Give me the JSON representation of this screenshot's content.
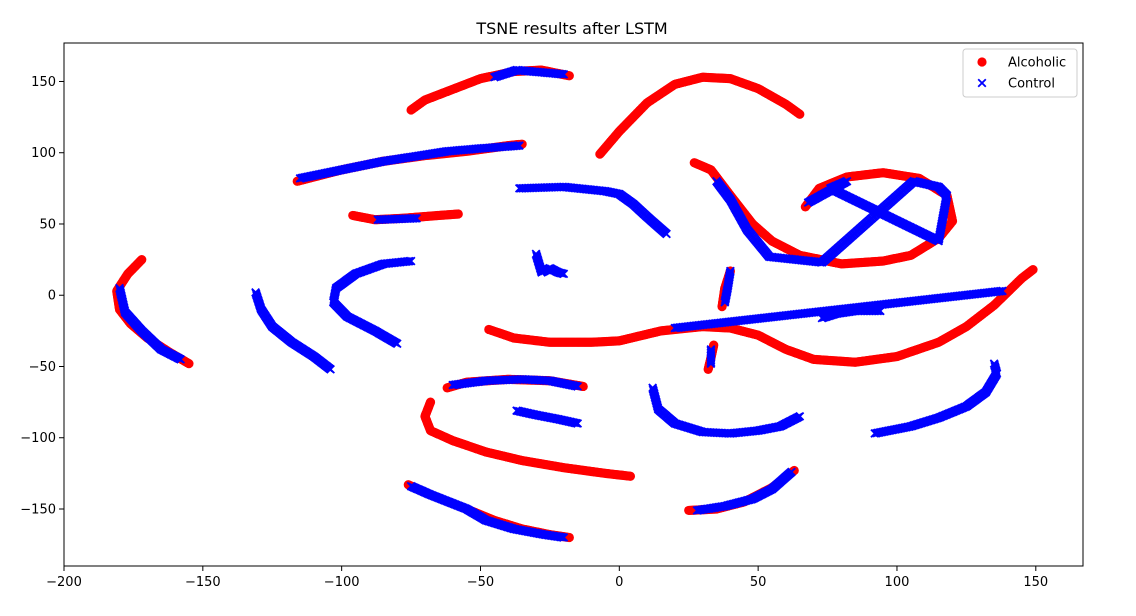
{
  "chart_data": {
    "type": "scatter",
    "title": "TSNE results after LSTM",
    "xlabel": "",
    "ylabel": "",
    "xlim": [
      -200,
      167
    ],
    "ylim": [
      -190,
      177
    ],
    "xticks": [
      -200,
      -150,
      -100,
      -50,
      0,
      50,
      100,
      150
    ],
    "yticks": [
      -150,
      -100,
      -50,
      0,
      50,
      100,
      150
    ],
    "grid": false,
    "legend_position": "top-right",
    "colors": {
      "Alcoholic": "#ff0000",
      "Control": "#0000ff"
    },
    "series": [
      {
        "name": "Alcoholic",
        "marker": "circle",
        "clusters": [
          [
            [
              -75,
              130
            ],
            [
              -70,
              137
            ],
            [
              -62,
              143
            ],
            [
              -50,
              152
            ],
            [
              -38,
              157
            ],
            [
              -28,
              158
            ],
            [
              -18,
              154
            ]
          ],
          [
            [
              -116,
              80
            ],
            [
              -100,
              88
            ],
            [
              -85,
              94
            ],
            [
              -70,
              98
            ],
            [
              -55,
              101
            ],
            [
              -40,
              105
            ],
            [
              -35,
              106
            ]
          ],
          [
            [
              -96,
              56
            ],
            [
              -88,
              53
            ],
            [
              -78,
              54
            ],
            [
              -65,
              56
            ],
            [
              -58,
              57
            ]
          ],
          [
            [
              -7,
              99
            ],
            [
              0,
              115
            ],
            [
              10,
              135
            ],
            [
              20,
              148
            ],
            [
              30,
              153
            ],
            [
              40,
              152
            ],
            [
              50,
              145
            ],
            [
              60,
              134
            ],
            [
              65,
              127
            ]
          ],
          [
            [
              -172,
              25
            ],
            [
              -177,
              15
            ],
            [
              -181,
              3
            ],
            [
              -180,
              -10
            ],
            [
              -176,
              -20
            ],
            [
              -170,
              -30
            ],
            [
              -162,
              -40
            ],
            [
              -155,
              -48
            ]
          ],
          [
            [
              -47,
              -24
            ],
            [
              -38,
              -30
            ],
            [
              -25,
              -33
            ],
            [
              -10,
              -33
            ],
            [
              0,
              -32
            ],
            [
              15,
              -25
            ],
            [
              30,
              -22
            ],
            [
              40,
              -23
            ],
            [
              50,
              -28
            ],
            [
              60,
              -38
            ],
            [
              70,
              -45
            ],
            [
              85,
              -47
            ],
            [
              100,
              -43
            ],
            [
              115,
              -33
            ],
            [
              125,
              -22
            ],
            [
              135,
              -7
            ],
            [
              145,
              12
            ],
            [
              149,
              18
            ]
          ],
          [
            [
              27,
              93
            ],
            [
              33,
              88
            ],
            [
              40,
              70
            ],
            [
              48,
              50
            ],
            [
              55,
              38
            ],
            [
              65,
              28
            ],
            [
              80,
              22
            ],
            [
              95,
              24
            ],
            [
              105,
              28
            ],
            [
              115,
              40
            ],
            [
              120,
              52
            ],
            [
              118,
              70
            ],
            [
              108,
              82
            ],
            [
              95,
              86
            ],
            [
              82,
              83
            ],
            [
              72,
              75
            ],
            [
              67,
              62
            ]
          ],
          [
            [
              -62,
              -65
            ],
            [
              -55,
              -61
            ],
            [
              -40,
              -59
            ],
            [
              -25,
              -60
            ],
            [
              -13,
              -64
            ]
          ],
          [
            [
              -76,
              -133
            ],
            [
              -68,
              -140
            ],
            [
              -55,
              -150
            ],
            [
              -45,
              -158
            ],
            [
              -35,
              -164
            ],
            [
              -25,
              -168
            ],
            [
              -18,
              -170
            ]
          ],
          [
            [
              25,
              -151
            ],
            [
              35,
              -150
            ],
            [
              45,
              -145
            ],
            [
              55,
              -135
            ],
            [
              63,
              -123
            ]
          ],
          [
            [
              37,
              -8
            ],
            [
              38,
              5
            ],
            [
              40,
              17
            ]
          ],
          [
            [
              32,
              -52
            ],
            [
              33,
              -44
            ],
            [
              34,
              -35
            ]
          ],
          [
            [
              -68,
              -75
            ],
            [
              -70,
              -85
            ],
            [
              -68,
              -95
            ],
            [
              -60,
              -102
            ],
            [
              -48,
              -110
            ],
            [
              -35,
              -116
            ],
            [
              -20,
              -121
            ],
            [
              -5,
              -125
            ],
            [
              4,
              -127
            ]
          ]
        ]
      },
      {
        "name": "Control",
        "marker": "x",
        "clusters": [
          [
            [
              -36,
              75
            ],
            [
              -20,
              76
            ],
            [
              -5,
              73
            ],
            [
              0,
              71
            ],
            [
              5,
              64
            ],
            [
              10,
              55
            ],
            [
              17,
              43
            ]
          ],
          [
            [
              -131,
              2
            ],
            [
              -129,
              -10
            ],
            [
              -125,
              -22
            ],
            [
              -118,
              -33
            ],
            [
              -110,
              -43
            ],
            [
              -104,
              -52
            ]
          ],
          [
            [
              -75,
              24
            ],
            [
              -85,
              22
            ],
            [
              -95,
              15
            ],
            [
              -102,
              5
            ],
            [
              -103,
              -5
            ],
            [
              -98,
              -15
            ],
            [
              -88,
              -25
            ],
            [
              -80,
              -34
            ]
          ],
          [
            [
              -30,
              29
            ],
            [
              -28,
              16
            ],
            [
              -25,
              19
            ],
            [
              -22,
              16
            ],
            [
              -20,
              15
            ]
          ],
          [
            [
              73,
              -16
            ],
            [
              78,
              -13
            ],
            [
              85,
              -11
            ],
            [
              94,
              -11
            ]
          ],
          [
            [
              12,
              -65
            ],
            [
              14,
              -80
            ],
            [
              20,
              -90
            ],
            [
              30,
              -96
            ],
            [
              40,
              -97
            ],
            [
              50,
              -95
            ],
            [
              58,
              -92
            ],
            [
              65,
              -85
            ]
          ],
          [
            [
              -37,
              -81
            ],
            [
              -30,
              -84
            ],
            [
              -22,
              -87
            ],
            [
              -15,
              -90
            ]
          ],
          [
            [
              92,
              -97
            ],
            [
              105,
              -92
            ],
            [
              115,
              -86
            ],
            [
              125,
              -78
            ],
            [
              132,
              -68
            ],
            [
              136,
              -55
            ],
            [
              135,
              -48
            ]
          ],
          [
            [
              -180,
              5
            ],
            [
              -178,
              -12
            ],
            [
              -172,
              -25
            ],
            [
              -165,
              -38
            ],
            [
              -158,
              -45
            ]
          ],
          [
            [
              -115,
              82
            ],
            [
              -100,
              88
            ],
            [
              -85,
              94
            ],
            [
              -75,
              97
            ],
            [
              -62,
              101
            ],
            [
              -50,
              103
            ],
            [
              -36,
              105
            ]
          ],
          [
            [
              -45,
              153
            ],
            [
              -37,
              158
            ],
            [
              -20,
              155
            ]
          ],
          [
            [
              -87,
              53
            ],
            [
              -73,
              54
            ]
          ],
          [
            [
              35,
              80
            ],
            [
              40,
              67
            ],
            [
              46,
              46
            ],
            [
              54,
              27
            ],
            [
              73,
              23
            ],
            [
              106,
              80
            ],
            [
              115,
              76
            ],
            [
              118,
              70
            ],
            [
              115,
              38
            ],
            [
              76,
              75
            ],
            [
              82,
              80
            ],
            [
              68,
              65
            ]
          ],
          [
            [
              20,
              -23
            ],
            [
              138,
              3
            ]
          ],
          [
            [
              -60,
              -63
            ],
            [
              -48,
              -60
            ],
            [
              -35,
              -59
            ],
            [
              -25,
              -60
            ],
            [
              -15,
              -64
            ]
          ],
          [
            [
              -75,
              -134
            ],
            [
              -68,
              -140
            ],
            [
              -55,
              -150
            ],
            [
              -48,
              -158
            ],
            [
              -38,
              -164
            ],
            [
              -27,
              -168
            ],
            [
              -20,
              -170
            ]
          ],
          [
            [
              28,
              -151
            ],
            [
              38,
              -148
            ],
            [
              48,
              -143
            ],
            [
              55,
              -136
            ],
            [
              62,
              -124
            ]
          ],
          [
            [
              38,
              -5
            ],
            [
              39,
              5
            ],
            [
              40,
              17
            ]
          ],
          [
            [
              33,
              -48
            ],
            [
              33,
              -38
            ]
          ]
        ]
      }
    ]
  }
}
